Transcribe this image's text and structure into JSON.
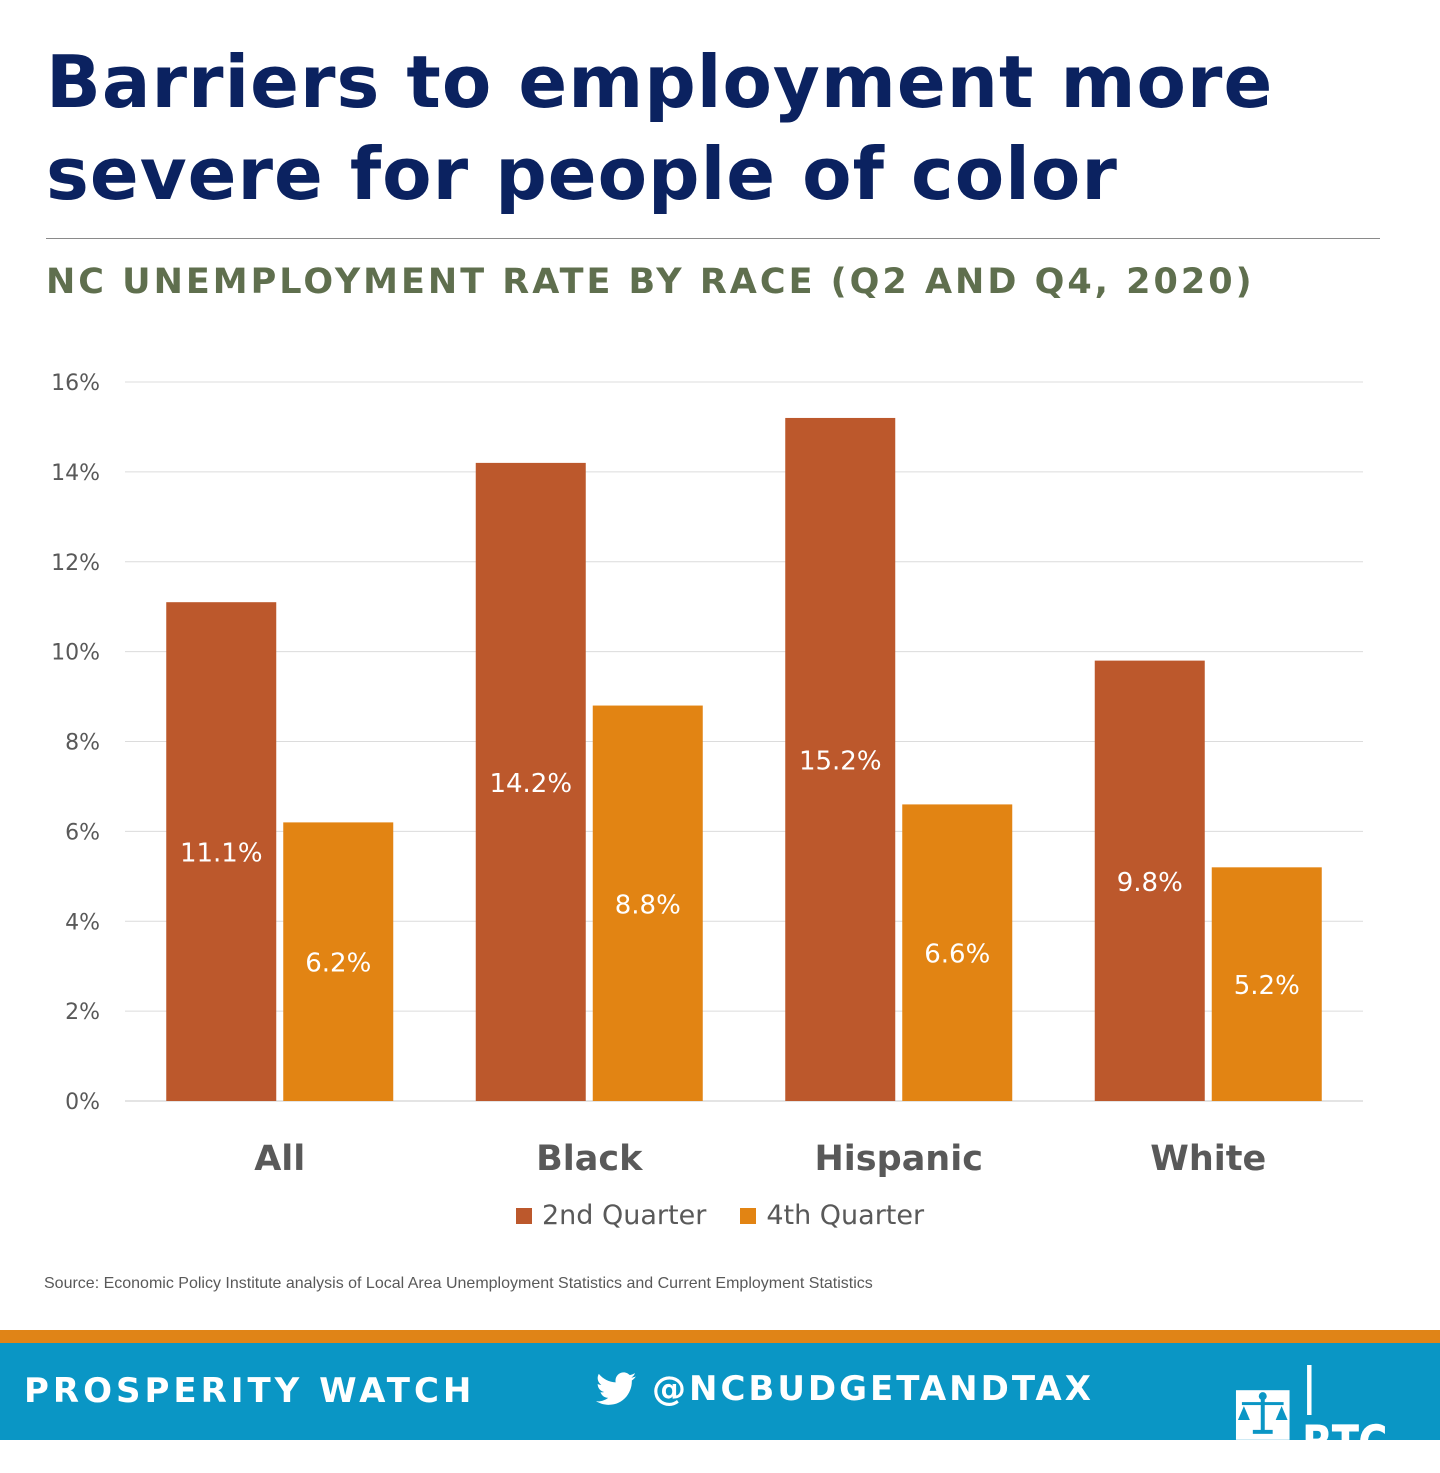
{
  "title": "Barriers to employment more severe for people of color",
  "subtitle": "NC UNEMPLOYMENT RATE BY RACE (Q2 AND Q4, 2020)",
  "source": "Source: Economic Policy Institute analysis of Local Area Unemployment Statistics and Current Employment Statistics",
  "footer": {
    "left": "PROSPERITY WATCH",
    "handle": "@NCBUDGETANDTAX",
    "logo_text": "| BTC",
    "twitter_icon": "twitter-bird-icon",
    "logo_icon": "scales-of-justice-icon"
  },
  "colors": {
    "q2": "#bc582c",
    "q4": "#e28413",
    "title": "#0b2260",
    "subtitle": "#5f6f4e",
    "footer_bar": "#0a96c5",
    "footer_stripe": "#e08417"
  },
  "chart_data": {
    "type": "bar",
    "categories": [
      "All",
      "Black",
      "Hispanic",
      "White"
    ],
    "series": [
      {
        "name": "2nd Quarter",
        "values": [
          11.1,
          14.2,
          15.2,
          9.8
        ],
        "labels": [
          "11.1%",
          "14.2%",
          "15.2%",
          "9.8%"
        ]
      },
      {
        "name": "4th Quarter",
        "values": [
          6.2,
          8.8,
          6.6,
          5.2
        ],
        "labels": [
          "6.2%",
          "8.8%",
          "6.6%",
          "5.2%"
        ]
      }
    ],
    "ylim": [
      0,
      16
    ],
    "yticks": [
      0,
      2,
      4,
      6,
      8,
      10,
      12,
      14,
      16
    ],
    "ytick_labels": [
      "0%",
      "2%",
      "4%",
      "6%",
      "8%",
      "10%",
      "12%",
      "14%",
      "16%"
    ],
    "grid": true,
    "legend": "bottom-center"
  }
}
